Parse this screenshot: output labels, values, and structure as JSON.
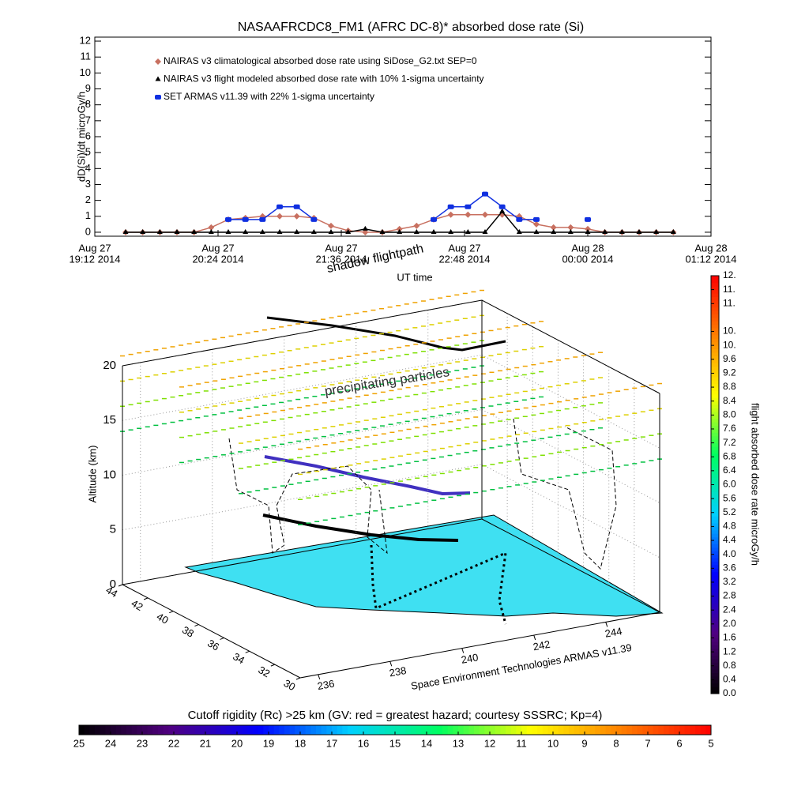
{
  "chart_data": [
    {
      "type": "line",
      "title": "NASAAFRCDC8_FM1 (AFRC DC-8)* absorbed dose rate (Si)",
      "x_label": "UT time",
      "y_label": "dD(Si)/dt microGy/h",
      "x": [
        "2014-08-27T19:30",
        "2014-08-27T19:40",
        "2014-08-27T19:50",
        "2014-08-27T20:00",
        "2014-08-27T20:10",
        "2014-08-27T20:20",
        "2014-08-27T20:30",
        "2014-08-27T20:40",
        "2014-08-27T20:50",
        "2014-08-27T21:00",
        "2014-08-27T21:10",
        "2014-08-27T21:20",
        "2014-08-27T21:30",
        "2014-08-27T21:40",
        "2014-08-27T21:50",
        "2014-08-27T22:00",
        "2014-08-27T22:10",
        "2014-08-27T22:20",
        "2014-08-27T22:30",
        "2014-08-27T22:40",
        "2014-08-27T22:50",
        "2014-08-27T23:00",
        "2014-08-27T23:10",
        "2014-08-27T23:20",
        "2014-08-27T23:30",
        "2014-08-27T23:40",
        "2014-08-27T23:50",
        "2014-08-28T00:00",
        "2014-08-28T00:10",
        "2014-08-28T00:20",
        "2014-08-28T00:30",
        "2014-08-28T00:40",
        "2014-08-28T00:50"
      ],
      "xlim": [
        "2014-08-27T19:12",
        "2014-08-28T01:12"
      ],
      "xticks": [
        {
          "value": "2014-08-27T19:12",
          "label": [
            "Aug 27",
            "19:12 2014"
          ]
        },
        {
          "value": "2014-08-27T20:24",
          "label": [
            "Aug 27",
            "20:24 2014"
          ]
        },
        {
          "value": "2014-08-27T21:36",
          "label": [
            "Aug 27",
            "21:36 2014"
          ]
        },
        {
          "value": "2014-08-27T22:48",
          "label": [
            "Aug 27",
            "22:48 2014"
          ]
        },
        {
          "value": "2014-08-28T00:00",
          "label": [
            "Aug 28",
            "00:00 2014"
          ]
        },
        {
          "value": "2014-08-28T01:12",
          "label": [
            "Aug 28",
            "01:12 2014"
          ]
        }
      ],
      "ylim": [
        -0.25,
        12.25
      ],
      "yticks": [
        0,
        1,
        2,
        3,
        4,
        5,
        6,
        7,
        8,
        9,
        10,
        11,
        12
      ],
      "series": [
        {
          "name": "NAIRAS v3 climatological absorbed dose rate using SiDose_G2.txt SEP=0",
          "color": "#c87060",
          "marker": "diamond",
          "values": [
            0,
            0,
            0,
            0,
            0,
            0.3,
            0.8,
            0.9,
            1,
            1,
            1,
            0.9,
            0.4,
            0.1,
            0,
            0,
            0.2,
            0.4,
            0.8,
            1.1,
            1.1,
            1.1,
            1.1,
            1,
            0.5,
            0.3,
            0.3,
            0.2,
            0,
            0,
            0,
            0,
            0
          ]
        },
        {
          "name": "NAIRAS v3 flight modeled absorbed dose rate with 10% 1-sigma uncertainty",
          "color": "#000000",
          "marker": "triangle",
          "values": [
            0,
            0,
            0,
            0,
            0,
            0,
            0,
            0,
            0,
            0,
            0,
            0,
            0,
            0,
            0.2,
            0,
            0,
            0,
            0,
            0,
            0,
            0,
            1.3,
            0,
            0,
            0,
            0,
            0,
            0,
            0,
            0,
            0,
            0
          ]
        },
        {
          "name": "SET ARMAS v11.39 with 22% 1-sigma uncertainty",
          "color": "#1030e0",
          "marker": "square",
          "values": [
            null,
            null,
            null,
            null,
            null,
            null,
            0.8,
            0.8,
            0.8,
            1.6,
            1.6,
            0.8,
            null,
            null,
            null,
            null,
            null,
            null,
            0.8,
            1.6,
            1.6,
            2.4,
            1.6,
            0.8,
            0.8,
            null,
            null,
            0.8,
            null,
            null,
            null,
            null,
            null
          ]
        }
      ]
    },
    {
      "type": "scatter3d",
      "annotations": [
        "shadow flightpath",
        "precipitating particles"
      ],
      "z_label": "Altitude (km)",
      "x_label": "Space Environment Technologies ARMAS v11.39",
      "xlim": [
        235.5,
        245.5
      ],
      "xticks": [
        236,
        238,
        240,
        242,
        244
      ],
      "ylim": [
        30,
        44
      ],
      "yticks": [
        30,
        32,
        34,
        36,
        38,
        40,
        42,
        44
      ],
      "zlim": [
        0,
        20
      ],
      "zticks": [
        0,
        5,
        10,
        15,
        20
      ]
    },
    {
      "type": "colorbar",
      "orientation": "vertical",
      "title": "flight absorbed dose rate microGy/h",
      "lim": [
        0,
        12
      ],
      "colormap": [
        "#000000",
        "#500080",
        "#0000ff",
        "#00d0ff",
        "#00ff60",
        "#ffff00",
        "#ff8000",
        "#ff0000"
      ],
      "ticks": [
        {
          "value": 0,
          "label": "0.0"
        },
        {
          "value": 0.4,
          "label": "0.4"
        },
        {
          "value": 0.8,
          "label": "0.8"
        },
        {
          "value": 1.2,
          "label": "1.2"
        },
        {
          "value": 1.6,
          "label": "1.6"
        },
        {
          "value": 2,
          "label": "2.0"
        },
        {
          "value": 2.4,
          "label": "2.4"
        },
        {
          "value": 2.8,
          "label": "2.8"
        },
        {
          "value": 3.2,
          "label": "3.2"
        },
        {
          "value": 3.6,
          "label": "3.6"
        },
        {
          "value": 4,
          "label": "4.0"
        },
        {
          "value": 4.4,
          "label": "4.4"
        },
        {
          "value": 4.8,
          "label": "4.8"
        },
        {
          "value": 5.2,
          "label": "5.2"
        },
        {
          "value": 5.6,
          "label": "5.6"
        },
        {
          "value": 6,
          "label": "6.0"
        },
        {
          "value": 6.4,
          "label": "6.4"
        },
        {
          "value": 6.8,
          "label": "6.8"
        },
        {
          "value": 7.2,
          "label": "7.2"
        },
        {
          "value": 7.6,
          "label": "7.6"
        },
        {
          "value": 8,
          "label": "8.0"
        },
        {
          "value": 8.4,
          "label": "8.4"
        },
        {
          "value": 8.8,
          "label": "8.8"
        },
        {
          "value": 9.2,
          "label": "9.2"
        },
        {
          "value": 9.6,
          "label": "9.6"
        },
        {
          "value": 10,
          "label": "10."
        },
        {
          "value": 10.4,
          "label": "10."
        },
        {
          "value": 11.2,
          "label": "11."
        },
        {
          "value": 11.6,
          "label": "11."
        },
        {
          "value": 12,
          "label": "12."
        }
      ]
    },
    {
      "type": "colorbar",
      "orientation": "horizontal",
      "title": "Cutoff rigidity (Rc) >25 km (GV: red = greatest hazard; courtesy SSSRC; Kp=4)",
      "lim": [
        25,
        5
      ],
      "colormap": [
        "#000000",
        "#500080",
        "#0000ff",
        "#00d0ff",
        "#00ff60",
        "#ffff00",
        "#ff8000",
        "#ff0000"
      ],
      "ticks": [
        25,
        24,
        23,
        22,
        21,
        20,
        19,
        18,
        17,
        16,
        15,
        14,
        13,
        12,
        11,
        10,
        9,
        8,
        7,
        6,
        5
      ]
    }
  ]
}
